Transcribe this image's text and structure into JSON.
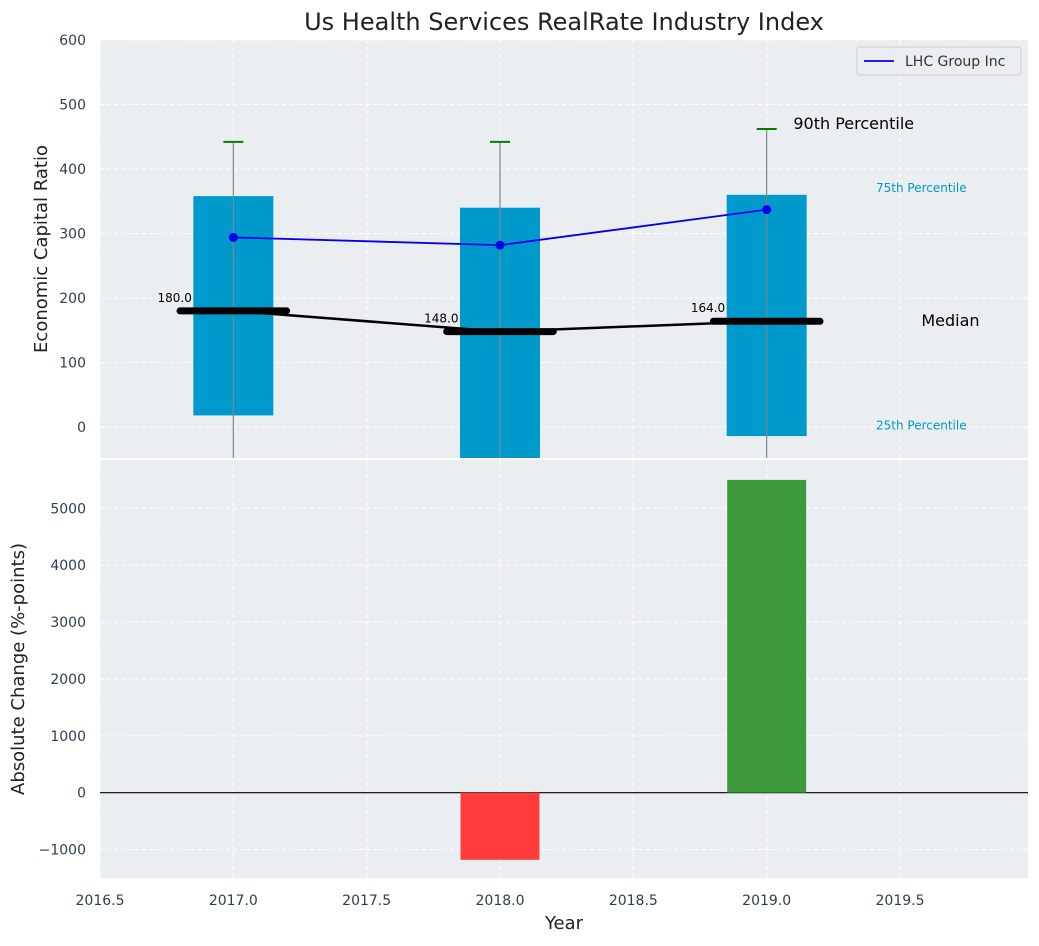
{
  "chart_data": [
    {
      "type": "bar",
      "title": "Us Health Services RealRate Industry Index",
      "ylabel": "Economic Capital Ratio",
      "xlim": [
        2016.5,
        2019.98
      ],
      "ylim": [
        -48,
        600
      ],
      "yticks": [
        0,
        100,
        200,
        300,
        400,
        500,
        600
      ],
      "grid": true,
      "legend_position": "top-right",
      "categories": [
        2017,
        2018,
        2019
      ],
      "percentile_bars": [
        {
          "year": 2017,
          "p25": 18,
          "p75": 358,
          "p90": 442
        },
        {
          "year": 2018,
          "p25": -48,
          "p75": 340,
          "p90": 442
        },
        {
          "year": 2019,
          "p25": -14,
          "p75": 360,
          "p90": 462
        }
      ],
      "series": [
        {
          "name": "LHC Group Inc",
          "x": [
            2017,
            2018,
            2019
          ],
          "values": [
            294,
            282,
            337
          ],
          "color": "#0000ee"
        },
        {
          "x": [
            2017,
            2018,
            2019
          ],
          "values": [
            180,
            148,
            164
          ],
          "color": "#000000"
        }
      ],
      "median_labels": [
        "180.0",
        "148.0",
        "164.0"
      ],
      "annotations": {
        "p90": "90th Percentile",
        "p75": "75th Percentile",
        "median": "Median",
        "p25": "25th Percentile"
      },
      "colors": {
        "bar": "#0099cc",
        "whisker_cap": "#008000",
        "background": "#eaeef0",
        "text": "#2e3f50"
      }
    },
    {
      "type": "bar",
      "xlabel": "Year",
      "ylabel": "Absolute Change (%-points)",
      "xlim": [
        2016.5,
        2019.98
      ],
      "ylim": [
        -1500,
        5850
      ],
      "xticks": [
        2016.5,
        2017.0,
        2017.5,
        2018.0,
        2018.5,
        2019.0,
        2019.5
      ],
      "xtick_labels": [
        "2016.5",
        "2017.0",
        "2017.5",
        "2018.0",
        "2018.5",
        "2019.0",
        "2019.5"
      ],
      "yticks": [
        -1000,
        0,
        1000,
        2000,
        3000,
        4000,
        5000
      ],
      "ytick_labels": [
        "−1000",
        "0",
        "1000",
        "2000",
        "3000",
        "4000",
        "5000"
      ],
      "grid": true,
      "categories": [
        2018,
        2019
      ],
      "values": [
        -1180,
        5500
      ],
      "colors": {
        "negative": "#ff3c3c",
        "positive": "#3c9a3c"
      }
    }
  ]
}
